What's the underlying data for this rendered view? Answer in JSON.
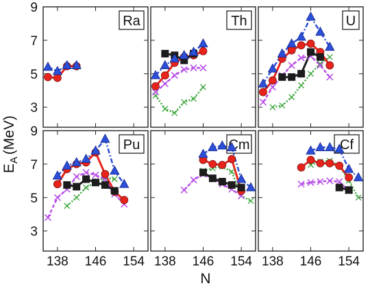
{
  "chart_data": {
    "type": "line",
    "xlabel": "N",
    "ylabel": "E_A (MeV)",
    "ylabel_main": "E",
    "ylabel_sub": "A",
    "ylabel_unit": "(MeV)",
    "xlim": [
      135,
      157
    ],
    "ylim": [
      1.8,
      9
    ],
    "xticks": [
      138,
      146,
      154
    ],
    "yticks": [
      3,
      5,
      7,
      9
    ],
    "grid": false,
    "colors": {
      "red": "#e8231c",
      "black": "#1c1c1c",
      "blue": "#2b4fd8",
      "magenta": "#b84ee8",
      "green": "#3aa53a"
    },
    "panels": [
      {
        "label": "Ra",
        "series": [
          {
            "marker": "triangle",
            "style": "dashdot",
            "color": "blue",
            "points": [
              [
                136,
                5.4
              ],
              [
                138,
                5.15
              ],
              [
                140,
                5.5
              ],
              [
                142,
                5.5
              ]
            ]
          },
          {
            "marker": "circle",
            "style": "solid",
            "color": "red",
            "points": [
              [
                136,
                4.8
              ],
              [
                138,
                4.75
              ],
              [
                140,
                5.45
              ],
              [
                142,
                5.45
              ]
            ]
          }
        ]
      },
      {
        "label": "Th",
        "series": [
          {
            "marker": "triangle",
            "style": "dashdot",
            "color": "blue",
            "points": [
              [
                136,
                4.9
              ],
              [
                138,
                5.5
              ],
              [
                140,
                5.9
              ],
              [
                142,
                6.1
              ],
              [
                144,
                6.3
              ],
              [
                146,
                6.8
              ]
            ]
          },
          {
            "marker": "square",
            "style": "solid",
            "color": "black",
            "points": [
              [
                138,
                6.2
              ],
              [
                140,
                6.1
              ],
              [
                142,
                5.8
              ],
              [
                144,
                6.2
              ]
            ]
          },
          {
            "marker": "circle",
            "style": "solid",
            "color": "red",
            "points": [
              [
                136,
                4.25
              ],
              [
                138,
                4.9
              ],
              [
                140,
                5.65
              ],
              [
                142,
                6.0
              ],
              [
                144,
                6.1
              ],
              [
                146,
                6.35
              ]
            ]
          },
          {
            "marker": "cross",
            "style": "dashed",
            "color": "magenta",
            "points": [
              [
                136,
                3.9
              ],
              [
                138,
                4.4
              ],
              [
                140,
                4.9
              ],
              [
                142,
                5.25
              ],
              [
                144,
                5.35
              ],
              [
                146,
                5.35
              ]
            ]
          },
          {
            "marker": "plus",
            "style": "dotted",
            "color": "green",
            "points": [
              [
                136,
                3.7
              ],
              [
                138,
                2.9
              ],
              [
                140,
                2.65
              ],
              [
                142,
                3.3
              ],
              [
                144,
                3.5
              ],
              [
                146,
                4.2
              ]
            ]
          }
        ]
      },
      {
        "label": "U",
        "series": [
          {
            "marker": "triangle",
            "style": "dashdot",
            "color": "blue",
            "points": [
              [
                136,
                4.4
              ],
              [
                138,
                5.3
              ],
              [
                140,
                6.2
              ],
              [
                142,
                6.8
              ],
              [
                144,
                7.2
              ],
              [
                146,
                8.4
              ],
              [
                148,
                7.5
              ],
              [
                150,
                6.6
              ]
            ]
          },
          {
            "marker": "square",
            "style": "solid",
            "color": "black",
            "points": [
              [
                140,
                4.8
              ],
              [
                142,
                4.8
              ],
              [
                144,
                5.0
              ],
              [
                146,
                6.3
              ],
              [
                148,
                6.0
              ]
            ]
          },
          {
            "marker": "circle",
            "style": "solid",
            "color": "red",
            "points": [
              [
                136,
                3.9
              ],
              [
                138,
                4.6
              ],
              [
                140,
                5.9
              ],
              [
                142,
                6.4
              ],
              [
                144,
                6.7
              ],
              [
                146,
                6.8
              ],
              [
                148,
                6.3
              ],
              [
                150,
                5.5
              ]
            ]
          },
          {
            "marker": "cross",
            "style": "dashed",
            "color": "magenta",
            "points": [
              [
                136,
                3.3
              ],
              [
                138,
                4.2
              ],
              [
                140,
                4.9
              ],
              [
                142,
                5.5
              ],
              [
                144,
                5.95
              ],
              [
                146,
                6.05
              ],
              [
                148,
                5.5
              ],
              [
                150,
                4.8
              ]
            ]
          },
          {
            "marker": "plus",
            "style": "dotted",
            "color": "green",
            "points": [
              [
                138,
                3.0
              ],
              [
                140,
                3.1
              ],
              [
                142,
                3.6
              ],
              [
                144,
                4.3
              ],
              [
                146,
                5.0
              ],
              [
                148,
                5.6
              ],
              [
                150,
                6.0
              ]
            ]
          }
        ]
      },
      {
        "label": "Pu",
        "series": [
          {
            "marker": "triangle",
            "style": "dashdot",
            "color": "blue",
            "points": [
              [
                138,
                6.3
              ],
              [
                140,
                6.9
              ],
              [
                142,
                7.1
              ],
              [
                144,
                7.3
              ],
              [
                146,
                7.8
              ],
              [
                148,
                8.5
              ],
              [
                150,
                6.6
              ],
              [
                152,
                5.8
              ]
            ]
          },
          {
            "marker": "square",
            "style": "solid",
            "color": "black",
            "points": [
              [
                140,
                5.75
              ],
              [
                142,
                5.65
              ],
              [
                144,
                6.1
              ],
              [
                146,
                5.9
              ],
              [
                148,
                5.75
              ],
              [
                150,
                5.4
              ]
            ]
          },
          {
            "marker": "circle",
            "style": "solid",
            "color": "red",
            "points": [
              [
                138,
                5.8
              ],
              [
                140,
                6.7
              ],
              [
                142,
                7.0
              ],
              [
                144,
                7.1
              ],
              [
                146,
                7.7
              ],
              [
                148,
                6.4
              ],
              [
                150,
                5.35
              ],
              [
                152,
                4.85
              ]
            ]
          },
          {
            "marker": "cross",
            "style": "dashed",
            "color": "magenta",
            "points": [
              [
                136,
                3.8
              ],
              [
                138,
                5.0
              ],
              [
                140,
                5.5
              ],
              [
                142,
                6.25
              ],
              [
                144,
                6.5
              ],
              [
                146,
                6.35
              ],
              [
                148,
                6.1
              ],
              [
                150,
                5.2
              ],
              [
                152,
                4.6
              ]
            ]
          },
          {
            "marker": "plus",
            "style": "dotted",
            "color": "green",
            "points": [
              [
                140,
                4.5
              ],
              [
                142,
                5.0
              ],
              [
                144,
                5.6
              ],
              [
                146,
                5.9
              ],
              [
                148,
                6.2
              ],
              [
                150,
                6.1
              ]
            ]
          }
        ]
      },
      {
        "label": "Cm",
        "series": [
          {
            "marker": "triangle",
            "style": "dashdot",
            "color": "blue",
            "points": [
              [
                146,
                7.6
              ],
              [
                148,
                8.0
              ],
              [
                150,
                8.1
              ],
              [
                152,
                8.0
              ],
              [
                154,
                6.1
              ],
              [
                156,
                5.6
              ]
            ]
          },
          {
            "marker": "square",
            "style": "solid",
            "color": "black",
            "points": [
              [
                146,
                6.5
              ],
              [
                148,
                6.15
              ],
              [
                150,
                5.95
              ],
              [
                152,
                5.75
              ],
              [
                154,
                5.6
              ]
            ]
          },
          {
            "marker": "circle",
            "style": "solid",
            "color": "red",
            "points": [
              [
                146,
                7.25
              ],
              [
                148,
                7.0
              ],
              [
                150,
                6.95
              ],
              [
                152,
                7.3
              ],
              [
                154,
                5.4
              ]
            ]
          },
          {
            "marker": "cross",
            "style": "dashed",
            "color": "magenta",
            "points": [
              [
                142,
                5.45
              ],
              [
                144,
                6.05
              ],
              [
                146,
                6.4
              ],
              [
                148,
                6.15
              ],
              [
                150,
                5.8
              ],
              [
                152,
                5.5
              ],
              [
                154,
                5.1
              ]
            ]
          },
          {
            "marker": "plus",
            "style": "dotted",
            "color": "green",
            "points": [
              [
                146,
                6.6
              ],
              [
                148,
                6.75
              ],
              [
                150,
                6.85
              ],
              [
                152,
                6.55
              ],
              [
                154,
                5.1
              ],
              [
                156,
                4.8
              ]
            ]
          }
        ]
      },
      {
        "label": "Cf",
        "series": [
          {
            "marker": "triangle",
            "style": "dashdot",
            "color": "blue",
            "points": [
              [
                146,
                7.8
              ],
              [
                148,
                8.0
              ],
              [
                150,
                8.0
              ],
              [
                152,
                7.9
              ],
              [
                154,
                6.7
              ],
              [
                156,
                6.2
              ]
            ]
          },
          {
            "marker": "square",
            "style": "solid",
            "color": "black",
            "points": [
              [
                152,
                5.6
              ],
              [
                154,
                5.45
              ]
            ]
          },
          {
            "marker": "circle",
            "style": "solid",
            "color": "red",
            "points": [
              [
                144,
                6.8
              ],
              [
                146,
                7.25
              ],
              [
                148,
                7.05
              ],
              [
                150,
                7.05
              ],
              [
                152,
                6.9
              ],
              [
                154,
                6.2
              ]
            ]
          },
          {
            "marker": "cross",
            "style": "dashed",
            "color": "magenta",
            "points": [
              [
                144,
                5.8
              ],
              [
                146,
                5.9
              ],
              [
                148,
                5.95
              ],
              [
                150,
                6.0
              ],
              [
                152,
                5.95
              ],
              [
                154,
                5.4
              ]
            ]
          },
          {
            "marker": "plus",
            "style": "dotted",
            "color": "green",
            "points": [
              [
                146,
                6.95
              ],
              [
                148,
                7.15
              ],
              [
                150,
                7.2
              ],
              [
                152,
                6.9
              ],
              [
                154,
                6.0
              ],
              [
                156,
                5.0
              ]
            ]
          }
        ]
      }
    ]
  }
}
